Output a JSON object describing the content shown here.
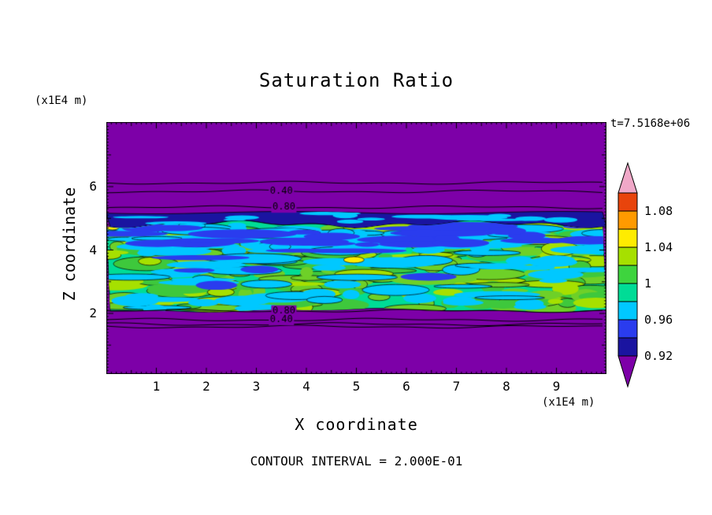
{
  "page": {
    "background": "#ffffff"
  },
  "chart_data": {
    "type": "filled_contour",
    "title": "Saturation Ratio",
    "xlabel": "X coordinate",
    "ylabel": "Z coordinate",
    "x_unit_label": "(x1E4 m)",
    "z_unit_label": "(x1E4 m)",
    "time_label": "t=7.5168e+06",
    "contour_note": "CONTOUR INTERVAL = 2.000E-01",
    "x_range": [
      0,
      10
    ],
    "z_range": [
      0,
      8
    ],
    "x_ticks": [
      "1",
      "2",
      "3",
      "4",
      "5",
      "6",
      "7",
      "8",
      "9"
    ],
    "z_ticks": [
      "2",
      "4",
      "6"
    ],
    "colorbar": {
      "levels": [
        "0.92",
        "0.96",
        "1",
        "1.04",
        "1.08"
      ],
      "colors_bottom_to_top": [
        "#7d00a8",
        "#1a14a0",
        "#2a3cee",
        "#00c8ff",
        "#00dc96",
        "#3ed43e",
        "#a6e000",
        "#ffec00",
        "#ff9a00",
        "#e8440c",
        "#f0a8c8"
      ]
    },
    "field": {
      "background_color": "#7d00a8",
      "mixed_layer": {
        "z_from": 2.1,
        "z_to": 4.81,
        "base_color": "#00dc96"
      },
      "inversion_band": {
        "z_from": 4.81,
        "z_to": 5.18,
        "color": "#1a14a0"
      },
      "contour_lines_upper": [
        {
          "z": 6.12
        },
        {
          "z": 5.85,
          "label": "0.40",
          "label_x": 3.5
        },
        {
          "z": 5.35,
          "label": "0.80",
          "label_x": 3.55
        }
      ],
      "contour_lines_lower": [
        {
          "z": 2.08,
          "label": "0.80",
          "label_x": 3.55
        },
        {
          "z": 1.8,
          "label": "0.40",
          "label_x": 3.5
        },
        {
          "z": 1.66
        },
        {
          "z": 1.58
        }
      ],
      "texture": {
        "seed": 1337,
        "green_blobs": 270,
        "green_colors": [
          "#a6e000",
          "#6ed028",
          "#3ec83c"
        ],
        "cyan_blobs": 150,
        "cyan_color": "#00c8ff",
        "blue_streaks": 34,
        "blue_color": "#2a3cee",
        "navy_cyan_streaks": 14,
        "yellow_color": "#ffec00",
        "yellow_spots": [
          {
            "x": 4.95,
            "z": 3.69,
            "w": 13,
            "h": 4
          },
          {
            "x": 0.12,
            "z": 4.72,
            "w": 9,
            "h": 3.5
          }
        ]
      }
    }
  }
}
